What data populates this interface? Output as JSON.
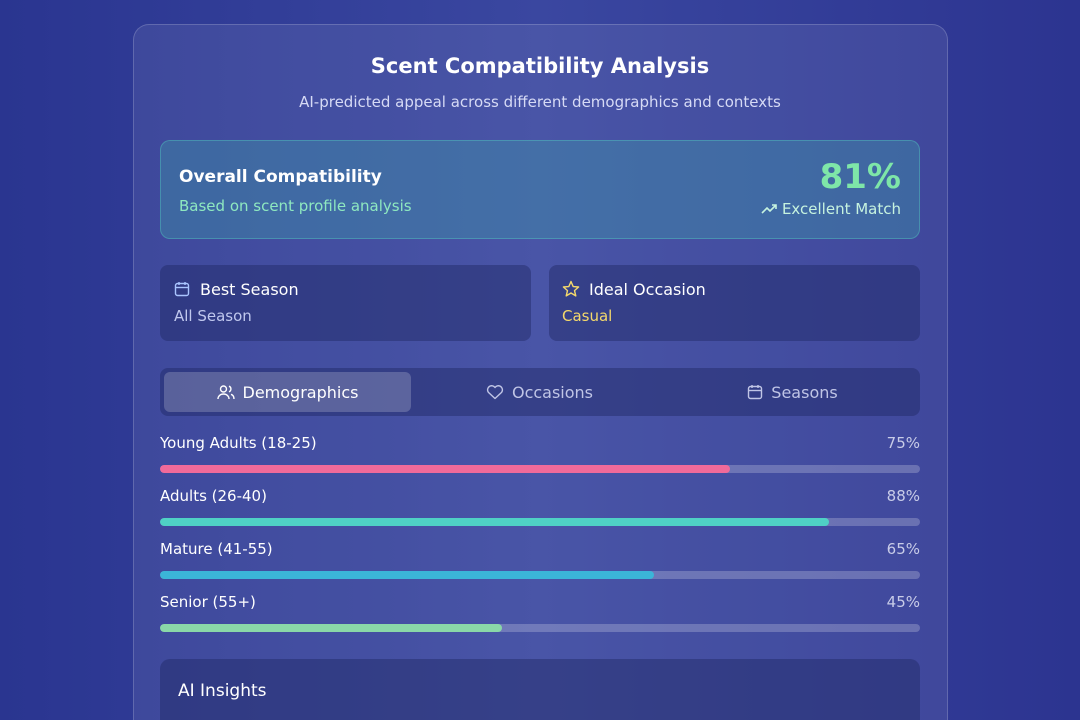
{
  "header": {
    "title": "Scent Compatibility Analysis",
    "subtitle": "AI-predicted appeal across different demographics and contexts"
  },
  "overall": {
    "title": "Overall Compatibility",
    "subtitle": "Based on scent profile analysis",
    "score": "81%",
    "rating": "Excellent Match"
  },
  "cards": [
    {
      "title": "Best Season",
      "value": "All Season"
    },
    {
      "title": "Ideal Occasion",
      "value": "Casual"
    }
  ],
  "tabs": [
    "Demographics",
    "Occasions",
    "Seasons"
  ],
  "demographics": [
    {
      "label": "Young Adults (18-25)",
      "value": 75,
      "value_label": "75%",
      "color": "#f06a9a"
    },
    {
      "label": "Adults (26-40)",
      "value": 88,
      "value_label": "88%",
      "color": "#4fd1c5"
    },
    {
      "label": "Mature (41-55)",
      "value": 65,
      "value_label": "65%",
      "color": "#3bb5d8"
    },
    {
      "label": "Senior (55+)",
      "value": 45,
      "value_label": "45%",
      "color": "#8ad8a8"
    }
  ],
  "insights": {
    "title": "AI Insights"
  }
}
